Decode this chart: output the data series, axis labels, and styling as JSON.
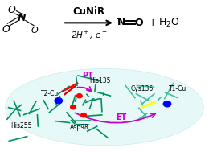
{
  "background_color": "#ffffff",
  "top_section": {
    "arrow_above": "CuNiR",
    "arrow_below": "2H⁺, e⁻",
    "product_plus": "+",
    "product_water": "H₂O"
  },
  "bottom_labels": {
    "PT": "PT",
    "ET": "ET",
    "His255": "His255",
    "T2Cu": "T2-Cu",
    "His135": "His135",
    "Asp98": "Asp98",
    "Cys136": "Cys136",
    "T1Cu": "T1-Cu"
  },
  "label_colors": {
    "PT": "#cc00cc",
    "ET": "#cc00cc",
    "His255": "#000000",
    "T2Cu": "#000000",
    "His135": "#000000",
    "Asp98": "#000000",
    "Cys136": "#000000",
    "T1Cu": "#000000"
  },
  "figsize": [
    2.6,
    1.89
  ],
  "dpi": 100
}
